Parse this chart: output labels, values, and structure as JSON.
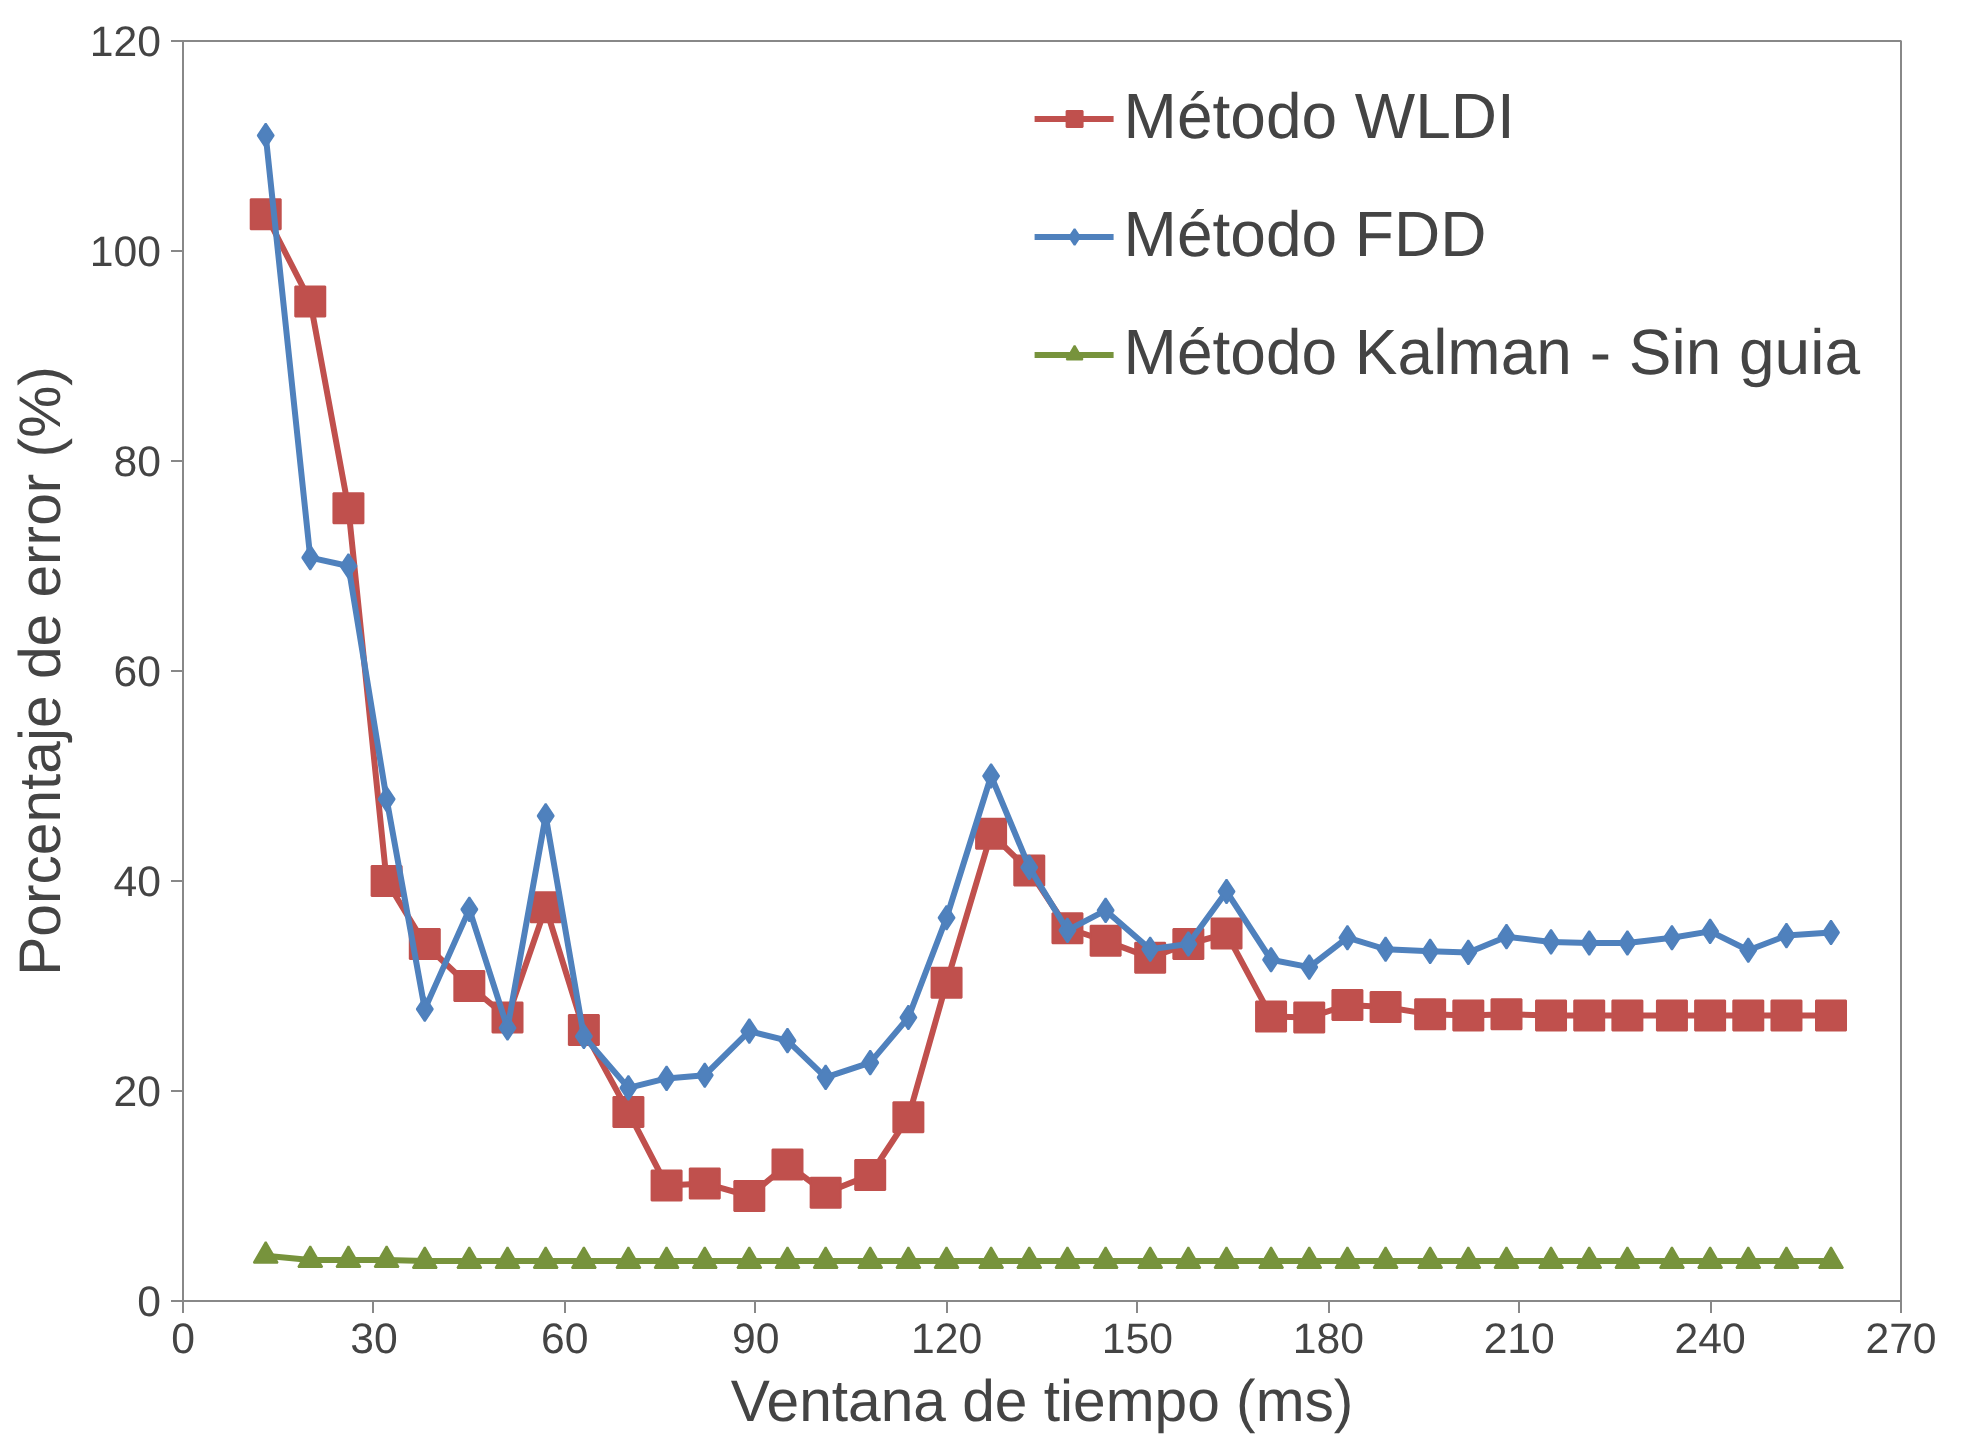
{
  "chart_data": {
    "type": "line",
    "xlabel": "Ventana de tiempo (ms)",
    "ylabel": "Porcentaje de error (%)",
    "x": [
      13,
      20,
      26,
      32,
      38,
      45,
      51,
      57,
      63,
      70,
      76,
      82,
      89,
      95,
      101,
      108,
      114,
      120,
      127,
      133,
      139,
      145,
      152,
      158,
      164,
      171,
      177,
      183,
      189,
      196,
      202,
      208,
      215,
      221,
      227,
      234,
      240,
      246,
      252,
      259
    ],
    "series": [
      {
        "name": "Método WLDI",
        "color": "#c0504d",
        "marker": "square",
        "values": [
          103.5,
          95.2,
          75.5,
          40,
          34,
          30,
          27,
          37.5,
          25.8,
          18,
          11,
          11.2,
          10,
          13,
          10.3,
          12,
          17.5,
          30.3,
          44.5,
          41,
          35.5,
          34.3,
          32.7,
          34,
          35,
          27.1,
          27,
          28.2,
          28,
          27.3,
          27.2,
          27.3,
          27.2,
          27.2,
          27.2,
          27.2,
          27.2,
          27.2,
          27.2,
          27.2
        ]
      },
      {
        "name": "Método FDD",
        "color": "#4f81bd",
        "marker": "diamond",
        "values": [
          111,
          70.8,
          70,
          47.8,
          27.8,
          37.3,
          26,
          46.2,
          25.2,
          20.3,
          21.2,
          21.5,
          25.7,
          24.8,
          21.3,
          22.7,
          27,
          36.5,
          50,
          41.3,
          35.3,
          37.2,
          33.5,
          34,
          39,
          32.5,
          31.8,
          34.6,
          33.5,
          33.3,
          33.2,
          34.7,
          34.2,
          34.1,
          34.1,
          34.6,
          35.2,
          33.4,
          34.8,
          35.1
        ]
      },
      {
        "name": "Método Kalman - Sin guia",
        "color": "#77933c",
        "marker": "triangle",
        "values": [
          4.3,
          3.9,
          3.9,
          3.9,
          3.8,
          3.8,
          3.8,
          3.8,
          3.8,
          3.8,
          3.8,
          3.8,
          3.8,
          3.8,
          3.8,
          3.8,
          3.8,
          3.8,
          3.8,
          3.8,
          3.8,
          3.8,
          3.8,
          3.8,
          3.8,
          3.8,
          3.8,
          3.8,
          3.8,
          3.8,
          3.8,
          3.8,
          3.8,
          3.8,
          3.8,
          3.8,
          3.8,
          3.8,
          3.8,
          3.8
        ]
      }
    ],
    "xlim": [
      0,
      270
    ],
    "xticks": [
      0,
      30,
      60,
      90,
      120,
      150,
      180,
      210,
      240,
      270
    ],
    "ylim": [
      0,
      120
    ],
    "yticks": [
      0,
      20,
      40,
      60,
      80,
      100,
      120
    ],
    "grid": false,
    "legend": "top right",
    "line_style": "solid"
  }
}
